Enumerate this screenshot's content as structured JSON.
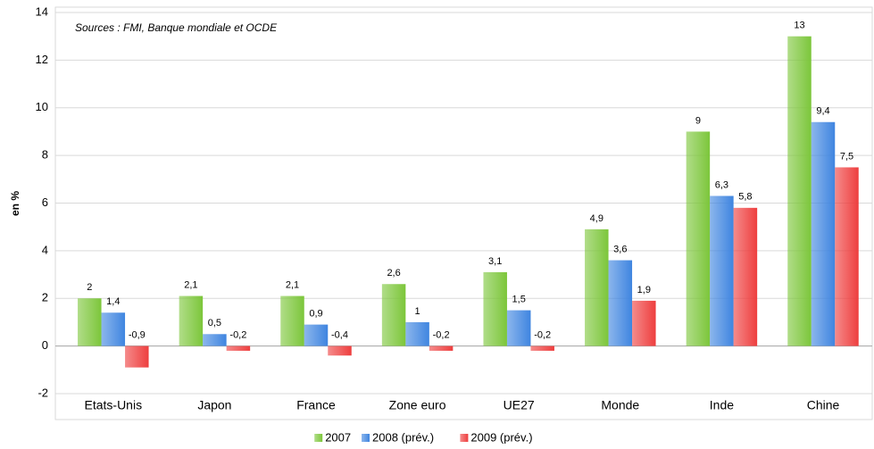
{
  "chart_data": {
    "type": "bar",
    "annotation": "Sources : FMI, Banque mondiale et OCDE",
    "y_label": "en %",
    "categories": [
      "Etats-Unis",
      "Japon",
      "France",
      "Zone euro",
      "UE27",
      "Monde",
      "Inde",
      "Chine"
    ],
    "series": [
      {
        "name": "2007",
        "color": "#7cc63a",
        "values": [
          2,
          2.1,
          2.1,
          2.6,
          3.1,
          4.9,
          9,
          13
        ],
        "value_labels": [
          "2",
          "2,1",
          "2,1",
          "2,6",
          "3,1",
          "4,9",
          "9",
          "13"
        ]
      },
      {
        "name": "2008 (prév.)",
        "color": "#3f85e0",
        "values": [
          1.4,
          0.5,
          0.9,
          1,
          1.5,
          3.6,
          6.3,
          9.4
        ],
        "value_labels": [
          "1,4",
          "0,5",
          "0,9",
          "1",
          "1,5",
          "3,6",
          "6,3",
          "9,4"
        ]
      },
      {
        "name": "2009 (prév.)",
        "color": "#ee3e3e",
        "values": [
          -0.9,
          -0.2,
          -0.4,
          -0.2,
          -0.2,
          1.9,
          5.8,
          7.5
        ],
        "value_labels": [
          "-0,9",
          "-0,2",
          "-0,4",
          "-0,2",
          "-0,2",
          "1,9",
          "5,8",
          "7,5"
        ]
      }
    ],
    "ylim": [
      -2,
      14
    ],
    "yticks": [
      -2,
      0,
      2,
      4,
      6,
      8,
      10,
      12,
      14
    ],
    "grid": true,
    "legend": "bottom"
  }
}
